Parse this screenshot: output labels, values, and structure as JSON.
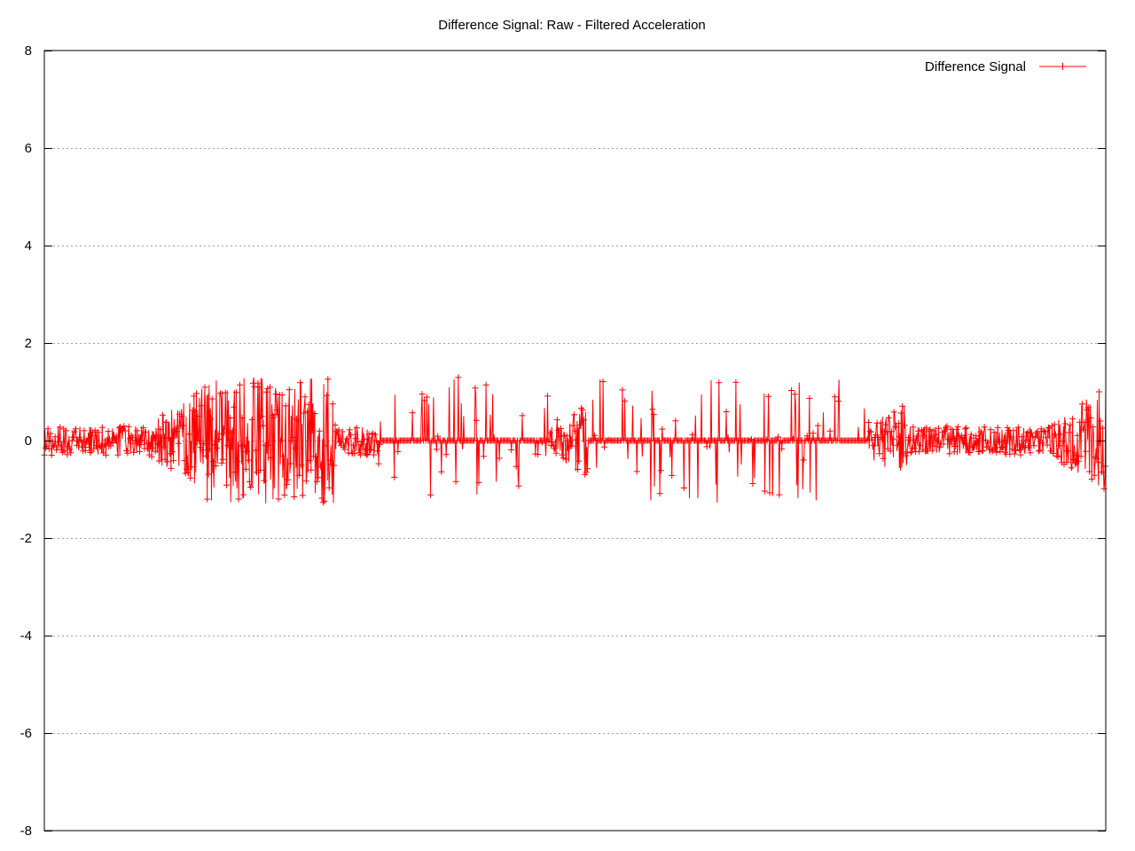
{
  "chart_data": {
    "type": "line",
    "title": "Difference Signal: Raw - Filtered Acceleration",
    "xlabel": "",
    "ylabel": "",
    "ylim": [
      -8,
      8
    ],
    "yticks": [
      {
        "value": 8,
        "label": "8"
      },
      {
        "value": 6,
        "label": "6"
      },
      {
        "value": 4,
        "label": "4"
      },
      {
        "value": 2,
        "label": "2"
      },
      {
        "value": 0,
        "label": "0"
      },
      {
        "value": -2,
        "label": "-2"
      },
      {
        "value": -4,
        "label": "-4"
      },
      {
        "value": -6,
        "label": "-6"
      },
      {
        "value": -8,
        "label": "-8"
      }
    ],
    "grid": true,
    "legend_position": "top-right",
    "series": [
      {
        "name": "Difference Signal",
        "color": "#ff0000",
        "marker": "plus",
        "segments": [
          {
            "count": 176,
            "pattern": "low",
            "start": 0.0,
            "end": 0.0
          },
          {
            "count": 88,
            "pattern": "oscillating",
            "start": 0.0,
            "end": 1.0
          },
          {
            "count": 220,
            "pattern": "burst",
            "start": 1.0,
            "end": 0.5
          },
          {
            "count": 66,
            "pattern": "low",
            "start": 0.5,
            "end": 0.0
          },
          {
            "count": 286,
            "pattern": "sparse",
            "start": 0.0,
            "end": 0.0
          },
          {
            "count": 66,
            "pattern": "oscillating",
            "start": 0.0,
            "end": 0.5
          },
          {
            "count": 132,
            "pattern": "sparse",
            "start": 0.0,
            "end": 0.0
          },
          {
            "count": 330,
            "pattern": "sparse",
            "start": 0.0,
            "end": 0.0
          },
          {
            "count": 66,
            "pattern": "oscillating",
            "start": 0.0,
            "end": 0.5
          },
          {
            "count": 242,
            "pattern": "low",
            "start": 0.0,
            "end": 0.0
          },
          {
            "count": 88,
            "pattern": "oscillating",
            "start": 0.0,
            "end": 1.0
          }
        ],
        "peak_amplitude": 1.3,
        "notes_range": [
          -1.3,
          1.3
        ]
      }
    ]
  }
}
